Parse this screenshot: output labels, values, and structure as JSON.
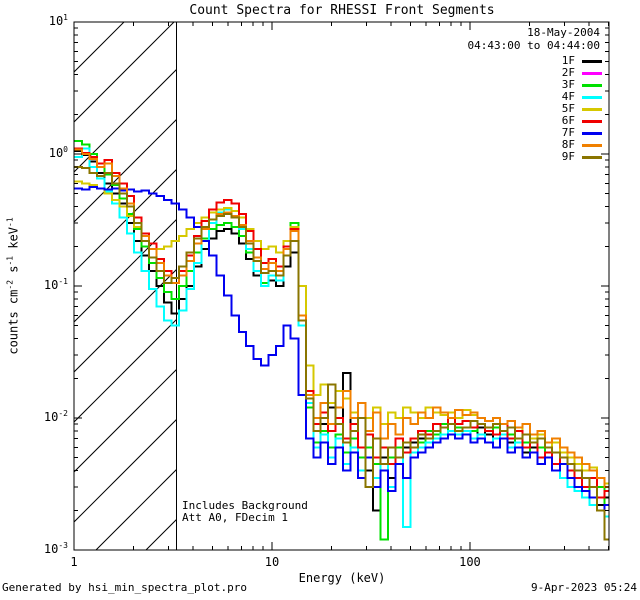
{
  "chart_data": {
    "type": "line",
    "title": "Count Spectra for RHESSI Front Segments",
    "date": "18-May-2004",
    "time_range": "04:43:00 to 04:44:00",
    "xlabel": "Energy (keV)",
    "ylabel": "counts cm^-2 s^-1 keV^-1",
    "ylabel_parts": [
      {
        "text": "counts cm"
      },
      {
        "sup": "-2"
      },
      {
        "text": " s"
      },
      {
        "sup": "-1"
      },
      {
        "text": " keV"
      },
      {
        "sup": "-1"
      }
    ],
    "annotation_line1": "Includes Background",
    "annotation_line2": "Att A0, FDecim 1",
    "xscale": "log",
    "yscale": "log",
    "xlim": [
      1,
      504
    ],
    "ylim": [
      0.001,
      10
    ],
    "grid": false,
    "legend_position": "top-right",
    "xticks": [
      {
        "value": 1,
        "label": "1"
      },
      {
        "value": 10,
        "label": "10"
      },
      {
        "value": 100,
        "label": "100"
      }
    ],
    "yticks": [
      {
        "value": 10,
        "base": "10",
        "exp": "1"
      },
      {
        "value": 1,
        "base": "10",
        "exp": "0"
      },
      {
        "value": 0.1,
        "base": "10",
        "exp": "-1"
      },
      {
        "value": 0.01,
        "base": "10",
        "exp": "-2"
      },
      {
        "value": 0.001,
        "base": "10",
        "exp": "-3"
      }
    ],
    "hatch_region": {
      "from_keV": 1,
      "to_keV": 3.3
    },
    "x": [
      1.05,
      1.15,
      1.25,
      1.36,
      1.49,
      1.62,
      1.77,
      1.93,
      2.1,
      2.3,
      2.5,
      2.73,
      2.98,
      3.25,
      3.54,
      3.86,
      4.22,
      4.6,
      5.01,
      5.47,
      5.97,
      6.51,
      7.1,
      7.74,
      8.44,
      9.21,
      10.0,
      11.0,
      11.9,
      13.0,
      14.2,
      15.5,
      16.9,
      18.4,
      20.1,
      21.9,
      23.9,
      26.1,
      28.5,
      31.0,
      33.9,
      36.9,
      40.3,
      43.9,
      47.9,
      52.3,
      57.0,
      62.2,
      67.8,
      74.0,
      80.7,
      88.0,
      96.0,
      105,
      114,
      125,
      136,
      148,
      162,
      176,
      192,
      210,
      229,
      249,
      272,
      297,
      324,
      353,
      385,
      420,
      458,
      499
    ],
    "series": [
      {
        "label": "1F",
        "color": "#000000",
        "values": [
          1.05,
          0.98,
          0.88,
          0.72,
          0.6,
          0.5,
          0.42,
          0.3,
          0.22,
          0.17,
          0.13,
          0.1,
          0.075,
          0.062,
          0.08,
          0.1,
          0.14,
          0.19,
          0.23,
          0.26,
          0.27,
          0.25,
          0.21,
          0.16,
          0.12,
          0.1,
          0.11,
          0.1,
          0.14,
          0.18,
          0.05,
          0.013,
          0.008,
          0.009,
          0.012,
          0.01,
          0.022,
          0.008,
          0.005,
          0.004,
          0.002,
          0.005,
          0.0035,
          0.005,
          0.006,
          0.0065,
          0.007,
          0.006,
          0.0075,
          0.007,
          0.008,
          0.0075,
          0.008,
          0.007,
          0.0085,
          0.0075,
          0.007,
          0.008,
          0.0065,
          0.007,
          0.0055,
          0.006,
          0.0045,
          0.005,
          0.004,
          0.0045,
          0.0035,
          0.003,
          0.0028,
          0.003,
          0.0022,
          0.0025
        ]
      },
      {
        "label": "2F",
        "color": "#ff00ff",
        "values": []
      },
      {
        "label": "3F",
        "color": "#00e000",
        "values": [
          1.25,
          1.18,
          1.0,
          0.85,
          0.7,
          0.58,
          0.46,
          0.35,
          0.27,
          0.2,
          0.15,
          0.115,
          0.09,
          0.08,
          0.1,
          0.13,
          0.18,
          0.23,
          0.27,
          0.29,
          0.3,
          0.28,
          0.24,
          0.18,
          0.13,
          0.105,
          0.12,
          0.11,
          0.19,
          0.3,
          0.06,
          0.012,
          0.0065,
          0.008,
          0.006,
          0.0075,
          0.0055,
          0.007,
          0.005,
          0.006,
          0.0045,
          0.0012,
          0.005,
          0.006,
          0.0055,
          0.007,
          0.0065,
          0.008,
          0.0075,
          0.009,
          0.008,
          0.0085,
          0.0075,
          0.008,
          0.009,
          0.008,
          0.0085,
          0.007,
          0.0075,
          0.006,
          0.0065,
          0.0055,
          0.006,
          0.005,
          0.0045,
          0.005,
          0.004,
          0.0035,
          0.003,
          0.0025,
          0.003,
          0.0022
        ]
      },
      {
        "label": "4F",
        "color": "#00ffff",
        "values": [
          0.95,
          1.1,
          0.8,
          0.65,
          0.52,
          0.42,
          0.33,
          0.25,
          0.18,
          0.13,
          0.095,
          0.07,
          0.055,
          0.05,
          0.065,
          0.095,
          0.15,
          0.22,
          0.3,
          0.36,
          0.38,
          0.34,
          0.27,
          0.19,
          0.13,
          0.1,
          0.12,
          0.11,
          0.17,
          0.28,
          0.05,
          0.013,
          0.006,
          0.0075,
          0.005,
          0.007,
          0.0045,
          0.006,
          0.004,
          0.005,
          0.0035,
          0.0045,
          0.003,
          0.005,
          0.0015,
          0.0055,
          0.006,
          0.0065,
          0.007,
          0.0075,
          0.008,
          0.0075,
          0.008,
          0.007,
          0.0075,
          0.0065,
          0.007,
          0.0075,
          0.006,
          0.0065,
          0.005,
          0.0055,
          0.0045,
          0.005,
          0.004,
          0.0035,
          0.003,
          0.0028,
          0.0025,
          0.0022,
          0.002,
          0.0018
        ]
      },
      {
        "label": "5F",
        "color": "#d6c800",
        "values": [
          0.62,
          0.6,
          0.58,
          0.55,
          0.5,
          0.45,
          0.4,
          0.34,
          0.28,
          0.24,
          0.21,
          0.19,
          0.2,
          0.22,
          0.24,
          0.27,
          0.3,
          0.33,
          0.36,
          0.38,
          0.39,
          0.37,
          0.33,
          0.27,
          0.22,
          0.19,
          0.2,
          0.18,
          0.22,
          0.28,
          0.1,
          0.025,
          0.015,
          0.018,
          0.013,
          0.016,
          0.014,
          0.011,
          0.013,
          0.01,
          0.012,
          0.009,
          0.011,
          0.01,
          0.012,
          0.011,
          0.01,
          0.012,
          0.011,
          0.0105,
          0.011,
          0.01,
          0.0115,
          0.0105,
          0.01,
          0.0095,
          0.01,
          0.009,
          0.0095,
          0.008,
          0.009,
          0.007,
          0.0075,
          0.006,
          0.0065,
          0.0055,
          0.005,
          0.0045,
          0.004,
          0.0042,
          0.0035,
          0.0032
        ]
      },
      {
        "label": "6F",
        "color": "#f00000",
        "values": [
          1.1,
          1.02,
          0.95,
          0.85,
          0.9,
          0.72,
          0.6,
          0.48,
          0.33,
          0.25,
          0.21,
          0.16,
          0.13,
          0.115,
          0.13,
          0.17,
          0.24,
          0.31,
          0.38,
          0.43,
          0.45,
          0.42,
          0.35,
          0.26,
          0.19,
          0.15,
          0.16,
          0.14,
          0.2,
          0.27,
          0.06,
          0.016,
          0.009,
          0.011,
          0.008,
          0.01,
          0.007,
          0.009,
          0.006,
          0.0075,
          0.005,
          0.006,
          0.0045,
          0.007,
          0.0055,
          0.007,
          0.008,
          0.0075,
          0.009,
          0.0085,
          0.01,
          0.009,
          0.0095,
          0.0085,
          0.009,
          0.008,
          0.0075,
          0.009,
          0.007,
          0.008,
          0.006,
          0.0065,
          0.005,
          0.0055,
          0.0045,
          0.005,
          0.004,
          0.0035,
          0.003,
          0.0035,
          0.0025,
          0.0028
        ]
      },
      {
        "label": "7F",
        "color": "#0000f0",
        "values": [
          0.55,
          0.54,
          0.56,
          0.55,
          0.54,
          0.55,
          0.53,
          0.54,
          0.52,
          0.53,
          0.5,
          0.48,
          0.45,
          0.42,
          0.38,
          0.33,
          0.28,
          0.22,
          0.17,
          0.12,
          0.085,
          0.06,
          0.045,
          0.035,
          0.028,
          0.025,
          0.03,
          0.035,
          0.05,
          0.04,
          0.015,
          0.007,
          0.005,
          0.0065,
          0.0045,
          0.006,
          0.004,
          0.0055,
          0.0035,
          0.005,
          0.003,
          0.004,
          0.0028,
          0.0045,
          0.0035,
          0.005,
          0.0055,
          0.006,
          0.0065,
          0.007,
          0.0075,
          0.007,
          0.0075,
          0.0065,
          0.007,
          0.0065,
          0.006,
          0.007,
          0.0055,
          0.006,
          0.005,
          0.0055,
          0.0045,
          0.005,
          0.004,
          0.0045,
          0.0035,
          0.003,
          0.0028,
          0.0025,
          0.002,
          0.0022
        ]
      },
      {
        "label": "8F",
        "color": "#f08000",
        "values": [
          1.08,
          1.0,
          0.92,
          0.8,
          0.85,
          0.68,
          0.55,
          0.42,
          0.3,
          0.24,
          0.19,
          0.15,
          0.12,
          0.105,
          0.12,
          0.155,
          0.21,
          0.27,
          0.32,
          0.35,
          0.36,
          0.34,
          0.29,
          0.22,
          0.165,
          0.135,
          0.15,
          0.13,
          0.19,
          0.26,
          0.06,
          0.015,
          0.01,
          0.013,
          0.009,
          0.012,
          0.016,
          0.01,
          0.013,
          0.008,
          0.011,
          0.007,
          0.009,
          0.0075,
          0.01,
          0.009,
          0.011,
          0.01,
          0.012,
          0.011,
          0.01,
          0.0115,
          0.0105,
          0.011,
          0.01,
          0.0095,
          0.01,
          0.009,
          0.0095,
          0.0085,
          0.009,
          0.0075,
          0.008,
          0.0065,
          0.007,
          0.006,
          0.0055,
          0.005,
          0.0045,
          0.004,
          0.0035,
          0.003
        ]
      },
      {
        "label": "9F",
        "color": "#8a7500",
        "values": [
          0.8,
          0.78,
          0.72,
          0.68,
          0.72,
          0.6,
          0.5,
          0.4,
          0.3,
          0.22,
          0.165,
          0.13,
          0.105,
          0.115,
          0.14,
          0.18,
          0.23,
          0.28,
          0.32,
          0.34,
          0.35,
          0.33,
          0.28,
          0.21,
          0.155,
          0.125,
          0.13,
          0.12,
          0.17,
          0.22,
          0.055,
          0.014,
          0.008,
          0.01,
          0.018,
          0.009,
          0.0065,
          0.008,
          0.01,
          0.003,
          0.007,
          0.0045,
          0.006,
          0.005,
          0.0065,
          0.006,
          0.0075,
          0.007,
          0.008,
          0.0085,
          0.009,
          0.008,
          0.0085,
          0.0095,
          0.009,
          0.0085,
          0.009,
          0.008,
          0.0085,
          0.007,
          0.0075,
          0.0065,
          0.007,
          0.006,
          0.0055,
          0.005,
          0.0045,
          0.004,
          0.0035,
          0.003,
          0.002,
          0.0012
        ]
      }
    ]
  },
  "footer": {
    "left": "Generated by hsi_min_spectra_plot.pro",
    "right": "9-Apr-2023 05:24"
  }
}
